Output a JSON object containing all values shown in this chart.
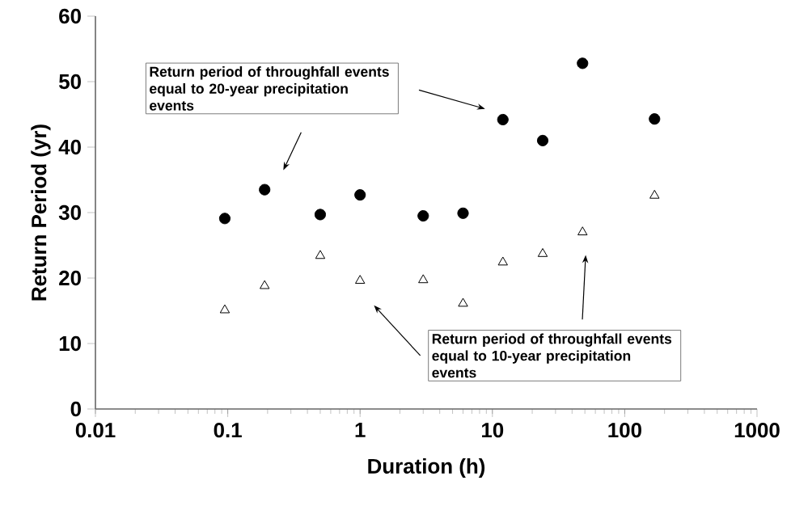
{
  "chart_data": {
    "type": "scatter",
    "xlabel": "Duration (h)",
    "ylabel": "Return Period (yr)",
    "log": "x",
    "grid": false,
    "x": [
      0.095,
      0.19,
      0.5,
      1,
      3,
      6,
      12,
      24,
      48,
      168
    ],
    "series": [
      {
        "color": "#000000",
        "marker": "circle",
        "values": [
          29.1,
          33.5,
          29.7,
          32.7,
          29.5,
          29.9,
          44.2,
          41.0,
          52.8,
          44.3
        ]
      },
      {
        "color": "#000000",
        "marker": "triangle",
        "values": [
          15.1,
          18.8,
          23.4,
          19.6,
          19.7,
          16.1,
          22.4,
          23.7,
          27.0,
          32.6
        ]
      }
    ],
    "xlim": [
      0.01,
      1000
    ],
    "xticks": [
      0.01,
      0.1,
      1,
      10,
      100,
      1000
    ],
    "ylim": [
      0,
      60
    ],
    "yticks": [
      0,
      10,
      20,
      30,
      40,
      50,
      60
    ],
    "annotations": [
      "Return period of throughfall events equal to 20-year precipitation events",
      "Return period of throughfall events equal to 10-year precipitation events"
    ]
  }
}
